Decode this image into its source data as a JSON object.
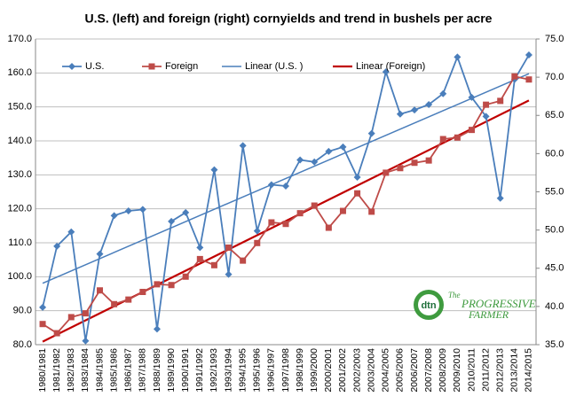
{
  "chart_data": {
    "type": "line",
    "title": "U.S. (left) and foreign (right) cornyields and trend in bushels per acre",
    "categories": [
      "1980/1981",
      "1981/1982",
      "1982/1983",
      "1983/1984",
      "1984/1985",
      "1985/1986",
      "1986/1987",
      "1987/1988",
      "1988/1989",
      "1989/1990",
      "1990/1991",
      "1991/1992",
      "1992/1993",
      "1993/1994",
      "1994/1995",
      "1995/1996",
      "1996/1997",
      "1997/1998",
      "1998/1999",
      "1999/2000",
      "2000/2001",
      "2001/2002",
      "2002/2003",
      "2003/2004",
      "2004/2005",
      "2005/2006",
      "2006/2007",
      "2007/2008",
      "2008/2009",
      "2009/2010",
      "2010/2011",
      "2011/2012",
      "2012/2013",
      "2013/2014",
      "2014/2015"
    ],
    "series": [
      {
        "name": "U.S.",
        "color": "#4a7ebb",
        "marker": "diamond",
        "trend_name": "Linear (U.S. )",
        "trend_color": "#4a7ebb",
        "values": [
          91.0,
          109.0,
          113.2,
          81.1,
          106.7,
          118.0,
          119.4,
          119.8,
          84.6,
          116.3,
          118.9,
          108.6,
          131.5,
          100.7,
          138.6,
          113.5,
          127.1,
          126.7,
          134.4,
          133.8,
          136.9,
          138.2,
          129.3,
          142.2,
          160.3,
          147.9,
          149.1,
          150.7,
          153.9,
          164.7,
          152.8,
          147.2,
          123.1,
          158.1,
          165.3
        ]
      },
      {
        "name": "Foreign",
        "color": "#be4b48",
        "marker": "square",
        "axis": "y2",
        "trend_name": "Linear (Foreign)",
        "trend_color": "#c00000",
        "values": [
          37.7,
          36.5,
          38.6,
          39.1,
          42.1,
          40.3,
          40.9,
          41.9,
          42.9,
          42.8,
          43.9,
          46.2,
          45.4,
          47.7,
          46.0,
          48.3,
          51.0,
          50.8,
          52.2,
          53.2,
          50.3,
          52.5,
          54.8,
          52.4,
          57.5,
          58.1,
          58.8,
          59.1,
          61.9,
          62.1,
          63.1,
          66.4,
          66.9,
          70.1,
          69.7
        ]
      }
    ],
    "ylim": [
      80,
      170
    ],
    "yticks": [
      {
        "value": 80,
        "label": "80.0"
      },
      {
        "value": 90,
        "label": "90.0"
      },
      {
        "value": 100,
        "label": "100.0"
      },
      {
        "value": 110,
        "label": "110.0"
      },
      {
        "value": 120,
        "label": "120.0"
      },
      {
        "value": 130,
        "label": "130.0"
      },
      {
        "value": 140,
        "label": "140.0"
      },
      {
        "value": 150,
        "label": "150.0"
      },
      {
        "value": 160,
        "label": "160.0"
      },
      {
        "value": 170,
        "label": "170.0"
      }
    ],
    "y2lim": [
      35,
      75
    ],
    "y2ticks": [
      {
        "value": 35,
        "label": "35.0"
      },
      {
        "value": 40,
        "label": "40.0"
      },
      {
        "value": 45,
        "label": "45.0"
      },
      {
        "value": 50,
        "label": "50.0"
      },
      {
        "value": 55,
        "label": "55.0"
      },
      {
        "value": 60,
        "label": "60.0"
      },
      {
        "value": 65,
        "label": "65.0"
      },
      {
        "value": 70,
        "label": "70.0"
      },
      {
        "value": 75,
        "label": "75.0"
      }
    ],
    "grid": true,
    "logo": {
      "mark": "dtn",
      "line1": "The",
      "line2": "PROGRESSIVE",
      "line3": "FARMER"
    }
  }
}
